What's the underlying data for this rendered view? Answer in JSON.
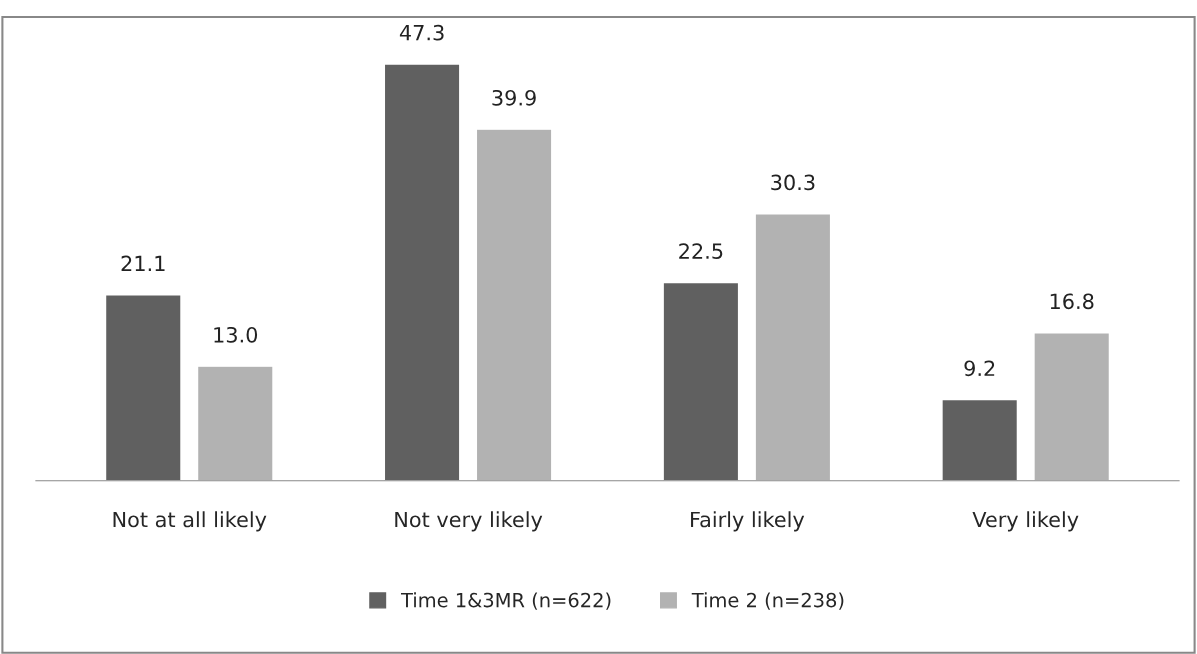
{
  "chart_data": {
    "type": "bar",
    "categories": [
      "Not at all likely",
      "Not very likely",
      "Fairly likely",
      "Very likely"
    ],
    "series": [
      {
        "name": "Time 1&3MR (n=622)",
        "color": "#606060",
        "values": [
          21.1,
          47.3,
          22.5,
          9.2
        ],
        "value_labels": [
          "21.1",
          "47.3",
          "22.5",
          "9.2"
        ]
      },
      {
        "name": "Time 2 (n=238)",
        "color": "#b2b2b2",
        "values": [
          13.0,
          39.9,
          30.3,
          16.8
        ],
        "value_labels": [
          "13.0",
          "39.9",
          "30.3",
          "16.8"
        ]
      }
    ],
    "legend": "bottom",
    "grid": false,
    "tick_labels": "x"
  }
}
